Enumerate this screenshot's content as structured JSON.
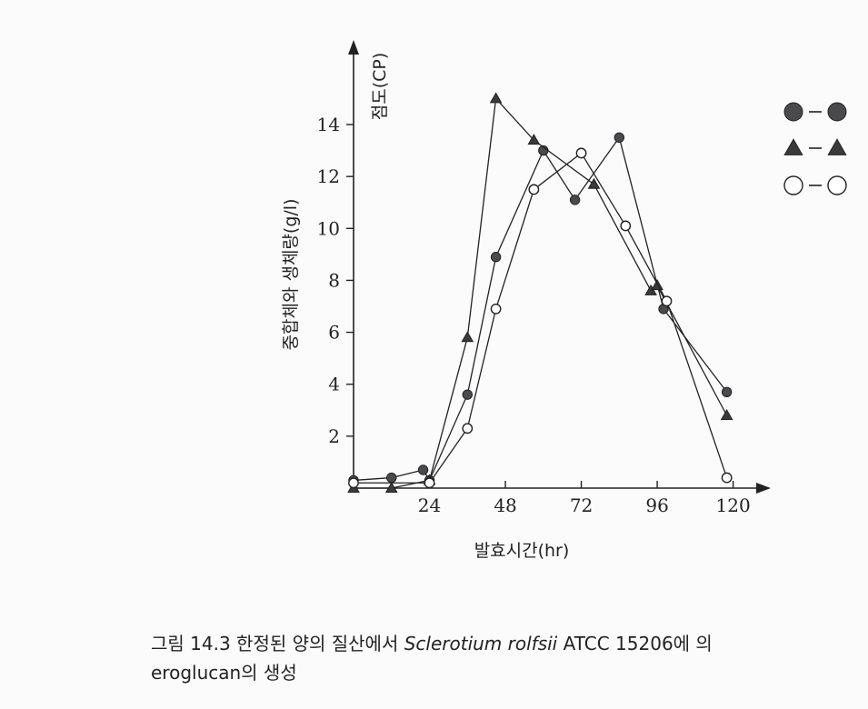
{
  "chart_data": {
    "type": "line",
    "xlabel": "발효시간(hr)",
    "ylabel": "중합체와 생체량(g/l)",
    "y2label": "점도(CP)",
    "x_ticks": [
      24,
      48,
      72,
      96,
      120
    ],
    "y_ticks": [
      2,
      4,
      6,
      8,
      10,
      12,
      14
    ],
    "xlim": [
      0,
      120
    ],
    "ylim": [
      0,
      16
    ],
    "grid": false,
    "legend_position": "top-right",
    "series": [
      {
        "marker": "filled-circle",
        "legend_label": "●-●",
        "points": [
          [
            0,
            0.3
          ],
          [
            12,
            0.4
          ],
          [
            22,
            0.7
          ],
          [
            24,
            0.3
          ],
          [
            36,
            3.6
          ],
          [
            45,
            8.9
          ],
          [
            60,
            13.0
          ],
          [
            70,
            11.1
          ],
          [
            84,
            13.5
          ],
          [
            98,
            6.9
          ],
          [
            118,
            3.7
          ]
        ]
      },
      {
        "marker": "filled-triangle",
        "legend_label": "▲-▲",
        "points": [
          [
            0,
            0.0
          ],
          [
            12,
            0.0
          ],
          [
            24,
            0.3
          ],
          [
            36,
            5.8
          ],
          [
            45,
            15.0
          ],
          [
            57,
            13.4
          ],
          [
            76,
            11.7
          ],
          [
            94,
            7.6
          ],
          [
            96,
            7.8
          ],
          [
            118,
            2.8
          ]
        ]
      },
      {
        "marker": "open-circle",
        "legend_label": "○-○",
        "points": [
          [
            0,
            0.2
          ],
          [
            24,
            0.2
          ],
          [
            36,
            2.3
          ],
          [
            45,
            6.9
          ],
          [
            57,
            11.5
          ],
          [
            72,
            12.9
          ],
          [
            86,
            10.1
          ],
          [
            99,
            7.2
          ],
          [
            118,
            0.4
          ]
        ]
      }
    ],
    "caption": {
      "prefix": "그림  14.3 한정된  양의  질산에서 ",
      "species": "Sclerotium rolfsii",
      "suffix": " ATCC  15206에  의",
      "line2": "eroglucan의  생성"
    }
  }
}
